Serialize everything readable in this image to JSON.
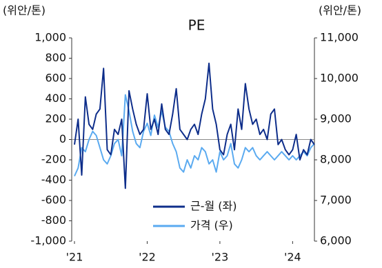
{
  "chart_data": {
    "type": "line",
    "title": "PE",
    "ylabel": "(위안/톤)",
    "y2label": "(위안/톤)",
    "x": [
      2021,
      2021.05,
      2021.1,
      2021.15,
      2021.2,
      2021.25,
      2021.3,
      2021.35,
      2021.4,
      2021.45,
      2021.5,
      2021.55,
      2021.6,
      2021.65,
      2021.7,
      2021.75,
      2021.8,
      2021.85,
      2021.9,
      2021.95,
      2022,
      2022.05,
      2022.1,
      2022.15,
      2022.2,
      2022.25,
      2022.3,
      2022.35,
      2022.4,
      2022.45,
      2022.5,
      2022.55,
      2022.6,
      2022.65,
      2022.7,
      2022.75,
      2022.8,
      2022.85,
      2022.9,
      2022.95,
      2023,
      2023.05,
      2023.1,
      2023.15,
      2023.2,
      2023.25,
      2023.3,
      2023.35,
      2023.4,
      2023.45,
      2023.5,
      2023.55,
      2023.6,
      2023.65,
      2023.7,
      2023.75,
      2023.8,
      2023.85,
      2023.9,
      2023.95,
      2024,
      2024.05,
      2024.1,
      2024.15,
      2024.2,
      2024.25,
      2024.3
    ],
    "series": [
      {
        "name": "근-월 (좌)",
        "color": "#0d2d8a",
        "axis": "y",
        "values": [
          -50,
          200,
          -350,
          420,
          150,
          100,
          250,
          300,
          700,
          -100,
          -150,
          100,
          50,
          200,
          -480,
          480,
          300,
          150,
          50,
          100,
          450,
          100,
          200,
          50,
          350,
          100,
          50,
          250,
          500,
          100,
          50,
          0,
          100,
          150,
          50,
          250,
          400,
          750,
          300,
          150,
          -100,
          -150,
          50,
          150,
          -100,
          300,
          100,
          550,
          300,
          150,
          200,
          50,
          100,
          0,
          250,
          300,
          -50,
          0,
          -100,
          -150,
          -100,
          50,
          -200,
          -100,
          -150,
          0,
          -50
        ]
      },
      {
        "name": "가격 (우)",
        "color": "#5aaaf0",
        "axis": "y2",
        "values": [
          7600,
          7800,
          8300,
          8200,
          8500,
          8700,
          8600,
          8300,
          8000,
          7900,
          8100,
          8400,
          8500,
          8100,
          9600,
          9200,
          8700,
          8400,
          8300,
          8700,
          8900,
          8600,
          9100,
          8800,
          9200,
          8800,
          8700,
          8400,
          8200,
          7800,
          7700,
          8000,
          7800,
          8100,
          8000,
          8300,
          8200,
          7900,
          8000,
          7700,
          8200,
          8000,
          8100,
          8400,
          7900,
          7800,
          8000,
          8300,
          8200,
          8300,
          8100,
          8000,
          8100,
          8200,
          8100,
          8000,
          8100,
          8200,
          8100,
          8000,
          8100,
          8000,
          8100,
          8200,
          8100,
          8300,
          8400
        ]
      }
    ],
    "xlim": [
      2021,
      2024.3
    ],
    "xticks": [
      {
        "value": 2021,
        "label": "'21"
      },
      {
        "value": 2022,
        "label": "'22"
      },
      {
        "value": 2023,
        "label": "'23"
      },
      {
        "value": 2024,
        "label": "'24"
      }
    ],
    "ylim": [
      -1000,
      1000
    ],
    "yticks": [
      {
        "value": -1000,
        "label": "-1,000"
      },
      -800,
      -600,
      -400,
      -200,
      0,
      200,
      400,
      600,
      800,
      {
        "value": 1000,
        "label": "1,000"
      }
    ],
    "y2lim": [
      6000,
      11000
    ],
    "y2ticks": [
      {
        "value": 6000,
        "label": "6,000"
      },
      {
        "value": 7000,
        "label": "7,000"
      },
      {
        "value": 8000,
        "label": "8,000"
      },
      {
        "value": 9000,
        "label": "9,000"
      },
      {
        "value": 10000,
        "label": "10,000"
      },
      {
        "value": 11000,
        "label": "11,000"
      }
    ]
  }
}
